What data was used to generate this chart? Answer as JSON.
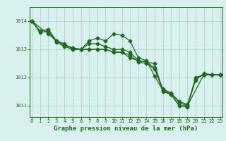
{
  "title": "Graphe pression niveau de la mer (hPa)",
  "xlabel_hours": [
    0,
    1,
    2,
    3,
    4,
    5,
    6,
    7,
    8,
    9,
    10,
    11,
    12,
    13,
    14,
    15,
    16,
    17,
    18,
    19,
    20,
    21,
    22,
    23
  ],
  "xtick_labels": [
    "0",
    "1",
    "2",
    "3",
    "4",
    "5",
    "6",
    "7",
    "8",
    "9",
    "10",
    "11",
    "12",
    "13",
    "14",
    "15",
    "16",
    "17",
    "18",
    "19",
    "20",
    "21",
    "22",
    "23"
  ],
  "series": [
    {
      "x": [
        0,
        1,
        2,
        3,
        4,
        5,
        6,
        7,
        8,
        9,
        10,
        11,
        12,
        13,
        14,
        15,
        16,
        17,
        18,
        19,
        20,
        21,
        22,
        23
      ],
      "y": [
        1014.0,
        1013.65,
        1013.7,
        1013.3,
        1013.15,
        1013.05,
        1013.0,
        1013.3,
        1013.4,
        1013.3,
        1013.55,
        1013.5,
        1013.3,
        1012.7,
        1012.6,
        1012.05,
        1011.55,
        1011.45,
        1011.1,
        1011.0,
        1012.0,
        1012.1,
        1012.1,
        1012.1
      ]
    },
    {
      "x": [
        0,
        1,
        2,
        3,
        4,
        5,
        6,
        7,
        8,
        9,
        10,
        11,
        12,
        13,
        14,
        15,
        16,
        17,
        18,
        19,
        20,
        21,
        22,
        23
      ],
      "y": [
        1014.0,
        1013.65,
        1013.7,
        1013.3,
        1013.15,
        1013.05,
        1013.0,
        1013.2,
        1013.2,
        1013.1,
        1013.0,
        1013.0,
        1012.9,
        1012.6,
        1012.55,
        1012.35,
        1011.6,
        1011.45,
        1011.15,
        1011.05,
        1011.9,
        1012.15,
        1012.1,
        1012.1
      ]
    },
    {
      "x": [
        0,
        2,
        3,
        4,
        5,
        6,
        7,
        8,
        9,
        10,
        11,
        12,
        13,
        14,
        15,
        16,
        17,
        18,
        19,
        21,
        22,
        23
      ],
      "y": [
        1014.0,
        1013.55,
        1013.3,
        1013.2,
        1013.0,
        1013.0,
        1013.0,
        1013.0,
        1013.0,
        1012.9,
        1012.9,
        1012.7,
        1012.6,
        1012.55,
        1012.5,
        1011.5,
        1011.4,
        1011.0,
        1011.0,
        1012.1,
        1012.1,
        1012.1
      ]
    },
    {
      "x": [
        0,
        1,
        2,
        3,
        4,
        5,
        6,
        7,
        8,
        9,
        10,
        11,
        12,
        13,
        14,
        15,
        16,
        17,
        18,
        19,
        20,
        21,
        22,
        23
      ],
      "y": [
        1014.0,
        1013.6,
        1013.65,
        1013.25,
        1013.1,
        1013.0,
        1013.0,
        1013.0,
        1013.0,
        1013.0,
        1012.9,
        1012.9,
        1012.8,
        1012.55,
        1012.5,
        1012.3,
        1011.55,
        1011.4,
        1011.0,
        1010.95,
        1011.95,
        1012.1,
        1012.1,
        1012.1
      ]
    }
  ],
  "line_color": "#1e6b1e",
  "marker": "D",
  "markersize": 2.5,
  "linewidth": 0.9,
  "ylim": [
    1010.6,
    1014.5
  ],
  "yticks": [
    1011,
    1012,
    1013,
    1014
  ],
  "xlim": [
    -0.3,
    23.3
  ],
  "background_color": "#d8f0ee",
  "grid_color": "#aed4cf",
  "title_text_color": "#1e6b1e",
  "title_fontsize": 6.5,
  "tick_fontsize": 5.0,
  "ylabel_color": "#1e6b1e"
}
